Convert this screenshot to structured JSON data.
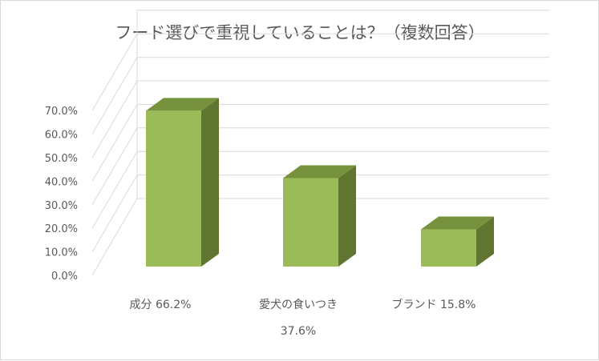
{
  "chart_data": {
    "type": "bar",
    "title": "フード選びで重視していることは？（複数回答）",
    "categories": [
      "成分",
      "愛犬の食いつき",
      "ブランド"
    ],
    "values": [
      66.2,
      37.6,
      15.8
    ],
    "category_labels": [
      [
        "成分 66.2%"
      ],
      [
        "愛犬の食いつき",
        "37.6%"
      ],
      [
        "ブランド 15.8%"
      ]
    ],
    "yticks": [
      "0.0%",
      "10.0%",
      "20.0%",
      "30.0%",
      "40.0%",
      "50.0%",
      "60.0%",
      "70.0%"
    ],
    "ylim": [
      0,
      70
    ],
    "grid": true,
    "style": "3d-column",
    "colors": {
      "front": "#9bbb59",
      "top": "#76923c",
      "side": "#5f7530",
      "grid": "#d9d9d9",
      "text": "#595959"
    }
  }
}
